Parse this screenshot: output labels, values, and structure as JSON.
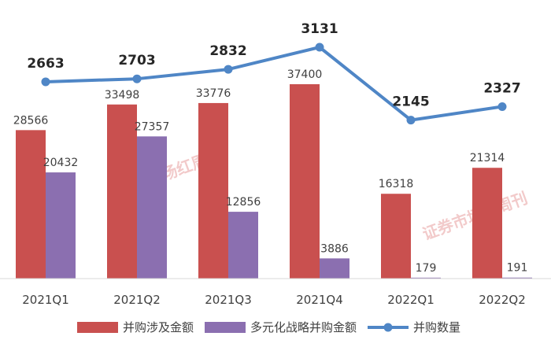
{
  "watermark": {
    "text": "证券市场红周刊"
  },
  "chart_data": {
    "type": "bar",
    "categories": [
      "2021Q1",
      "2021Q2",
      "2021Q3",
      "2021Q4",
      "2022Q1",
      "2022Q2"
    ],
    "series": [
      {
        "name": "并购涉及金额",
        "kind": "bar",
        "axis": "left",
        "color": "#c9504f",
        "values": [
          28566,
          33498,
          33776,
          37400,
          16318,
          21314
        ]
      },
      {
        "name": "多元化战略并购金额",
        "kind": "bar",
        "axis": "left",
        "color": "#8b6fb0",
        "values": [
          20432,
          27357,
          12856,
          3886,
          179,
          191
        ]
      },
      {
        "name": "并购数量",
        "kind": "line",
        "axis": "right",
        "color": "#4f86c6",
        "values": [
          2663,
          2703,
          2832,
          3131,
          2145,
          2327
        ]
      }
    ],
    "ylim_left": [
      0,
      40000
    ],
    "ylim_right": [
      0,
      3500
    ],
    "grid": false,
    "legend": "bottom"
  }
}
